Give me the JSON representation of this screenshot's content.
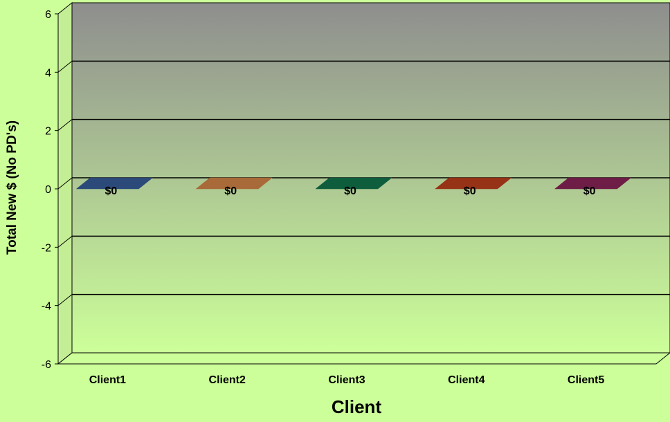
{
  "chart_data": {
    "type": "bar",
    "categories": [
      "Client1",
      "Client2",
      "Client3",
      "Client4",
      "Client5"
    ],
    "values": [
      0,
      0,
      0,
      0,
      0
    ],
    "data_labels": [
      "$0",
      "$0",
      "$0",
      "$0",
      "$0"
    ],
    "xlabel": "Client",
    "ylabel": "Total New $ (No PD's)",
    "ylim": [
      -6,
      6
    ],
    "yticks": [
      -6,
      -4,
      -2,
      0,
      2,
      4,
      6
    ],
    "ytick_labels": [
      "-6",
      "-4",
      "-2",
      "0",
      "2",
      "4",
      "6"
    ],
    "grid": true,
    "style": "3d",
    "colors": [
      "#2b4a7a",
      "#a86a38",
      "#0e5e3e",
      "#963216",
      "#6e1e46"
    ],
    "background": "#ccff99",
    "wall_gradient": [
      "#8e8e8e",
      "#ccff99"
    ]
  }
}
